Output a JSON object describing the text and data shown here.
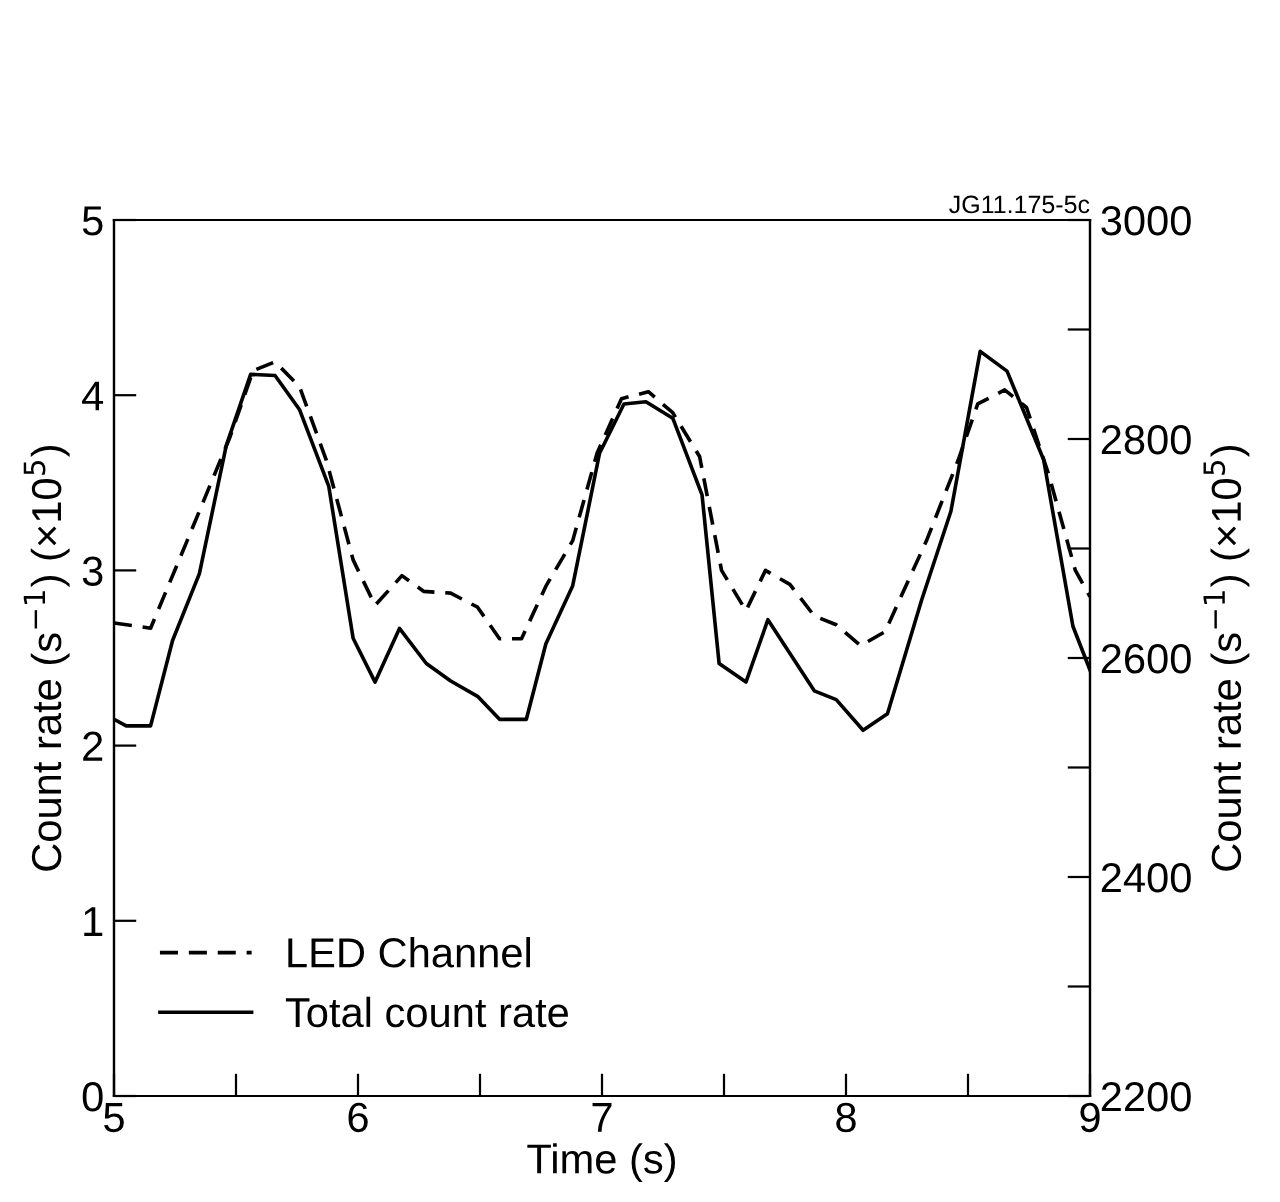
{
  "chart_data": {
    "type": "line",
    "xlabel": "Time (s)",
    "ylabel": "Count rate (s$^{−1}$) (×10$^{5}$)",
    "y2label": "Count rate (s$^{−1}$) (×10$^{5}$)",
    "annotations": [
      "JG11.175-5c"
    ],
    "xlim": [
      5,
      9
    ],
    "xticks": [
      5,
      {
        "value": 5.5,
        "label": null
      },
      6,
      {
        "value": 6.5,
        "label": null
      },
      7,
      {
        "value": 7.5,
        "label": null
      },
      8,
      {
        "value": 8.5,
        "label": null
      },
      9
    ],
    "ylim": [
      0,
      5
    ],
    "yticks": [
      0,
      1,
      2,
      3,
      4,
      5
    ],
    "y2lim": [
      2200,
      3000
    ],
    "y2ticks": [
      2200,
      {
        "value": 2300,
        "label": null
      },
      2400,
      {
        "value": 2500,
        "label": null
      },
      2600,
      {
        "value": 2700,
        "label": null
      },
      2800,
      {
        "value": 2900,
        "label": null
      },
      3000
    ],
    "grid": false,
    "legend": "bottom left",
    "marker": "none",
    "series": [
      {
        "name": "LED Channel",
        "color": "#000000",
        "line_style": "dashed",
        "x": [
          5.0,
          5.15,
          5.3,
          5.475,
          5.57,
          5.66,
          5.76,
          5.87,
          5.98,
          6.07,
          6.18,
          6.27,
          6.38,
          6.49,
          6.58,
          6.67,
          6.77,
          6.88,
          6.98,
          7.08,
          7.19,
          7.29,
          7.4,
          7.49,
          7.59,
          7.67,
          7.77,
          7.87,
          7.96,
          8.06,
          8.16,
          8.33,
          8.46,
          8.54,
          8.65,
          8.74,
          8.83,
          8.94,
          9.0
        ],
        "values": [
          2.7,
          2.67,
          3.17,
          3.76,
          4.14,
          4.19,
          4.05,
          3.63,
          3.06,
          2.8,
          2.97,
          2.88,
          2.87,
          2.79,
          2.61,
          2.61,
          2.91,
          3.17,
          3.67,
          3.98,
          4.02,
          3.9,
          3.65,
          3.0,
          2.77,
          3.0,
          2.92,
          2.74,
          2.69,
          2.57,
          2.65,
          3.17,
          3.63,
          3.95,
          4.03,
          3.93,
          3.55,
          3.0,
          2.85
        ]
      },
      {
        "name": "Total count rate",
        "color": "#000000",
        "line_style": "solid",
        "axis": "y2",
        "x": [
          5.0,
          5.05,
          5.15,
          5.24,
          5.35,
          5.46,
          5.56,
          5.66,
          5.76,
          5.88,
          5.98,
          6.07,
          6.17,
          6.28,
          6.38,
          6.49,
          6.58,
          6.69,
          6.77,
          6.88,
          6.99,
          7.09,
          7.18,
          7.29,
          7.41,
          7.48,
          7.59,
          7.68,
          7.87,
          7.96,
          8.07,
          8.17,
          8.31,
          8.43,
          8.55,
          8.66,
          8.81,
          8.93,
          9.0
        ],
        "values": [
          2544,
          2538,
          2538,
          2616,
          2677,
          2794,
          2859,
          2858,
          2827,
          2757,
          2618,
          2578,
          2627,
          2595,
          2579,
          2565,
          2544,
          2544,
          2613,
          2666,
          2787,
          2832,
          2834,
          2819,
          2749,
          2595,
          2578,
          2635,
          2570,
          2562,
          2534,
          2549,
          2653,
          2734,
          2880,
          2862,
          2781,
          2629,
          2589
        ]
      }
    ]
  }
}
